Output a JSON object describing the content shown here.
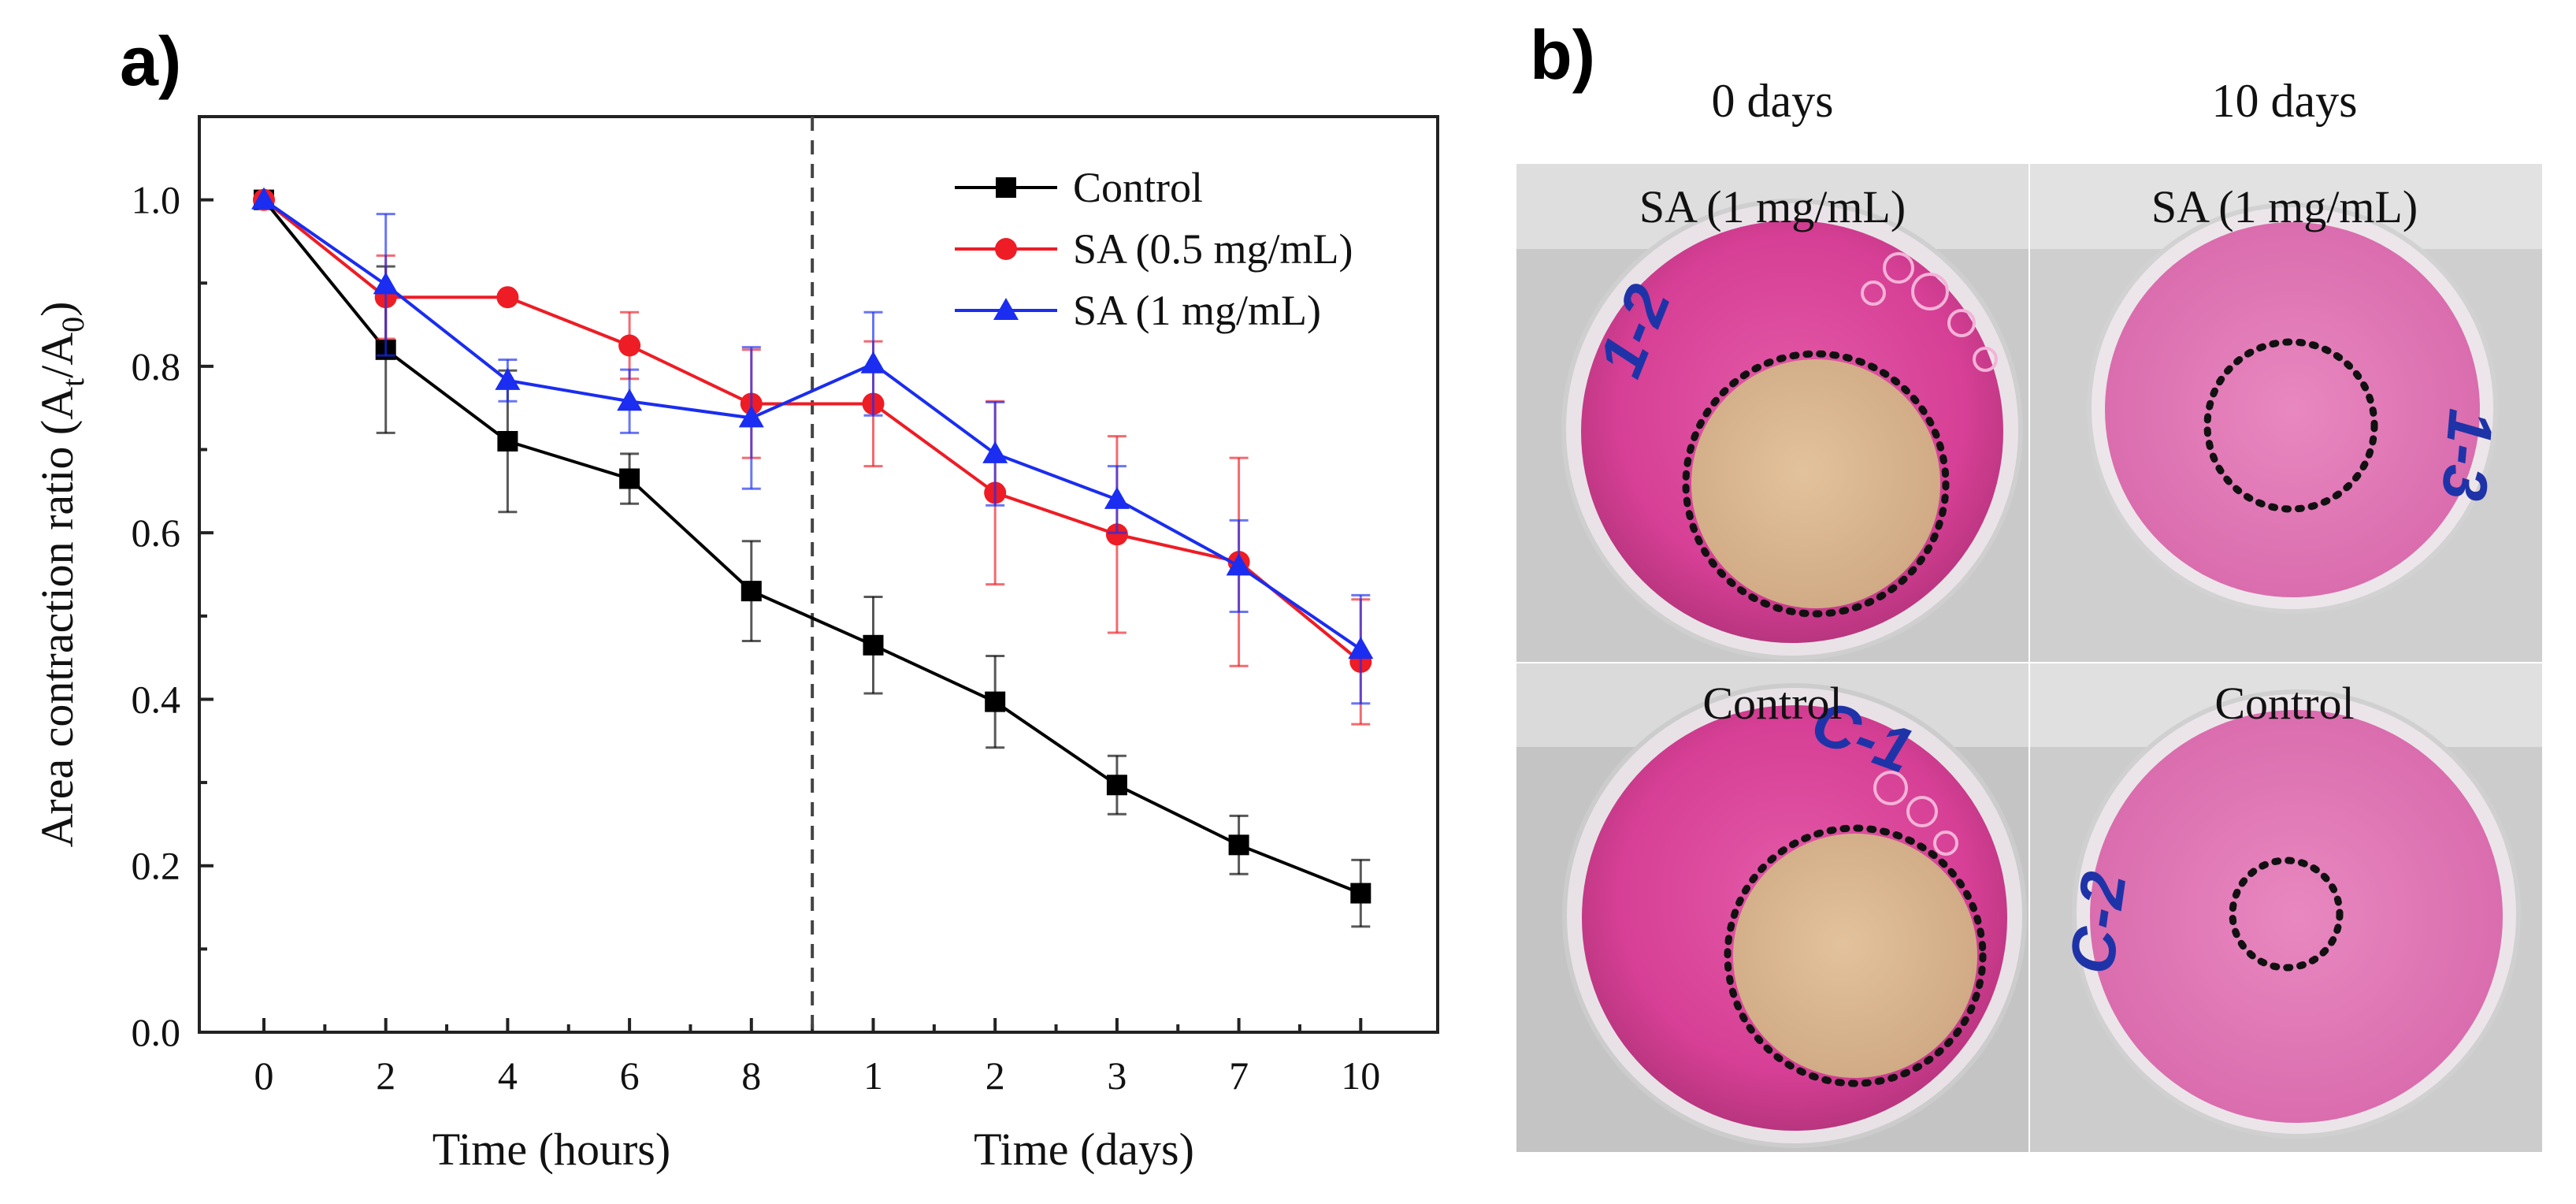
{
  "panel_a": {
    "label": "a)"
  },
  "panel_b": {
    "label": "b)",
    "column_titles": [
      "0 days",
      "10 days"
    ],
    "photos": [
      {
        "name": "sa-1mg-0days",
        "label": "SA (1 mg/mL)",
        "marker": "1-2"
      },
      {
        "name": "sa-1mg-10days",
        "label": "SA (1 mg/mL)",
        "marker": "1-3"
      },
      {
        "name": "control-0days",
        "label": "Control",
        "marker": "C-1"
      },
      {
        "name": "control-10days",
        "label": "Control",
        "marker": "C-2"
      }
    ]
  },
  "colors": {
    "control": "#000000",
    "sa05": "#ee1c25",
    "sa1": "#1a2df0",
    "dish_pink": "#d8479a",
    "wound": "#d9b48f"
  },
  "chart_data": {
    "type": "line",
    "title": "",
    "xlabel_left": "Time (hours)",
    "xlabel_right": "Time (days)",
    "ylabel": "Area contraction ratio (A",
    "ylabel_sub1": "t",
    "ylabel_mid": "/A",
    "ylabel_sub2": "0",
    "ylabel_end": ")",
    "categories": [
      "0",
      "2",
      "4",
      "6",
      "8",
      "1",
      "2",
      "3",
      "7",
      "10"
    ],
    "ylim": [
      0,
      1.1
    ],
    "yticks": [
      "0.0",
      "0.2",
      "0.4",
      "0.6",
      "0.8",
      "1.0"
    ],
    "divider_between": [
      4,
      5
    ],
    "legend_position": "top-right",
    "series": [
      {
        "name": "Control",
        "marker": "square",
        "color": "#000000",
        "values": [
          1.0,
          0.82,
          0.71,
          0.665,
          0.53,
          0.465,
          0.397,
          0.297,
          0.225,
          0.167
        ],
        "errors": [
          0.0,
          0.1,
          0.085,
          0.03,
          0.06,
          0.058,
          0.055,
          0.035,
          0.035,
          0.04
        ]
      },
      {
        "name": "SA (0.5 mg/mL)",
        "marker": "circle",
        "color": "#ee1c25",
        "values": [
          1.0,
          0.883,
          0.883,
          0.825,
          0.755,
          0.755,
          0.648,
          0.598,
          0.565,
          0.445
        ],
        "errors": [
          0.0,
          0.05,
          0.0,
          0.04,
          0.065,
          0.075,
          0.11,
          0.118,
          0.125,
          0.075
        ]
      },
      {
        "name": "SA (1 mg/mL)",
        "marker": "triangle",
        "color": "#1a2df0",
        "values": [
          1.0,
          0.898,
          0.783,
          0.758,
          0.738,
          0.803,
          0.695,
          0.64,
          0.56,
          0.46
        ],
        "errors": [
          0.0,
          0.085,
          0.025,
          0.038,
          0.085,
          0.062,
          0.062,
          0.04,
          0.055,
          0.065
        ]
      }
    ]
  }
}
